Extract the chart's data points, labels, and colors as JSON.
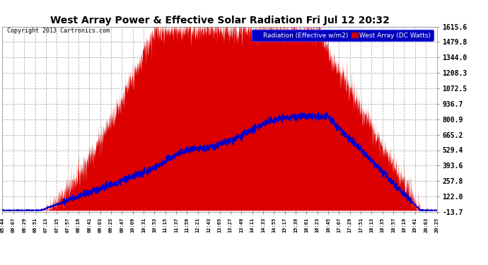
{
  "title": "West Array Power & Effective Solar Radiation Fri Jul 12 20:32",
  "copyright": "Copyright 2013 Cartronics.com",
  "legend_labels": [
    "Radiation (Effective w/m2)",
    "West Array (DC Watts)"
  ],
  "legend_colors": [
    "#0000cc",
    "#cc0000"
  ],
  "legend_bg": "#0000bb",
  "y_ticks": [
    -13.7,
    122.0,
    257.8,
    393.6,
    529.4,
    665.2,
    800.9,
    936.7,
    1072.5,
    1208.3,
    1344.0,
    1479.8,
    1615.6
  ],
  "ylim": [
    -13.7,
    1615.6
  ],
  "bg_color": "#ffffff",
  "plot_bg": "#ffffff",
  "grid_color": "#aaaaaa",
  "fill_color": "#dd0000",
  "line_color": "#0000cc",
  "title_color": "black",
  "tick_color": "black",
  "copyright_color": "black"
}
